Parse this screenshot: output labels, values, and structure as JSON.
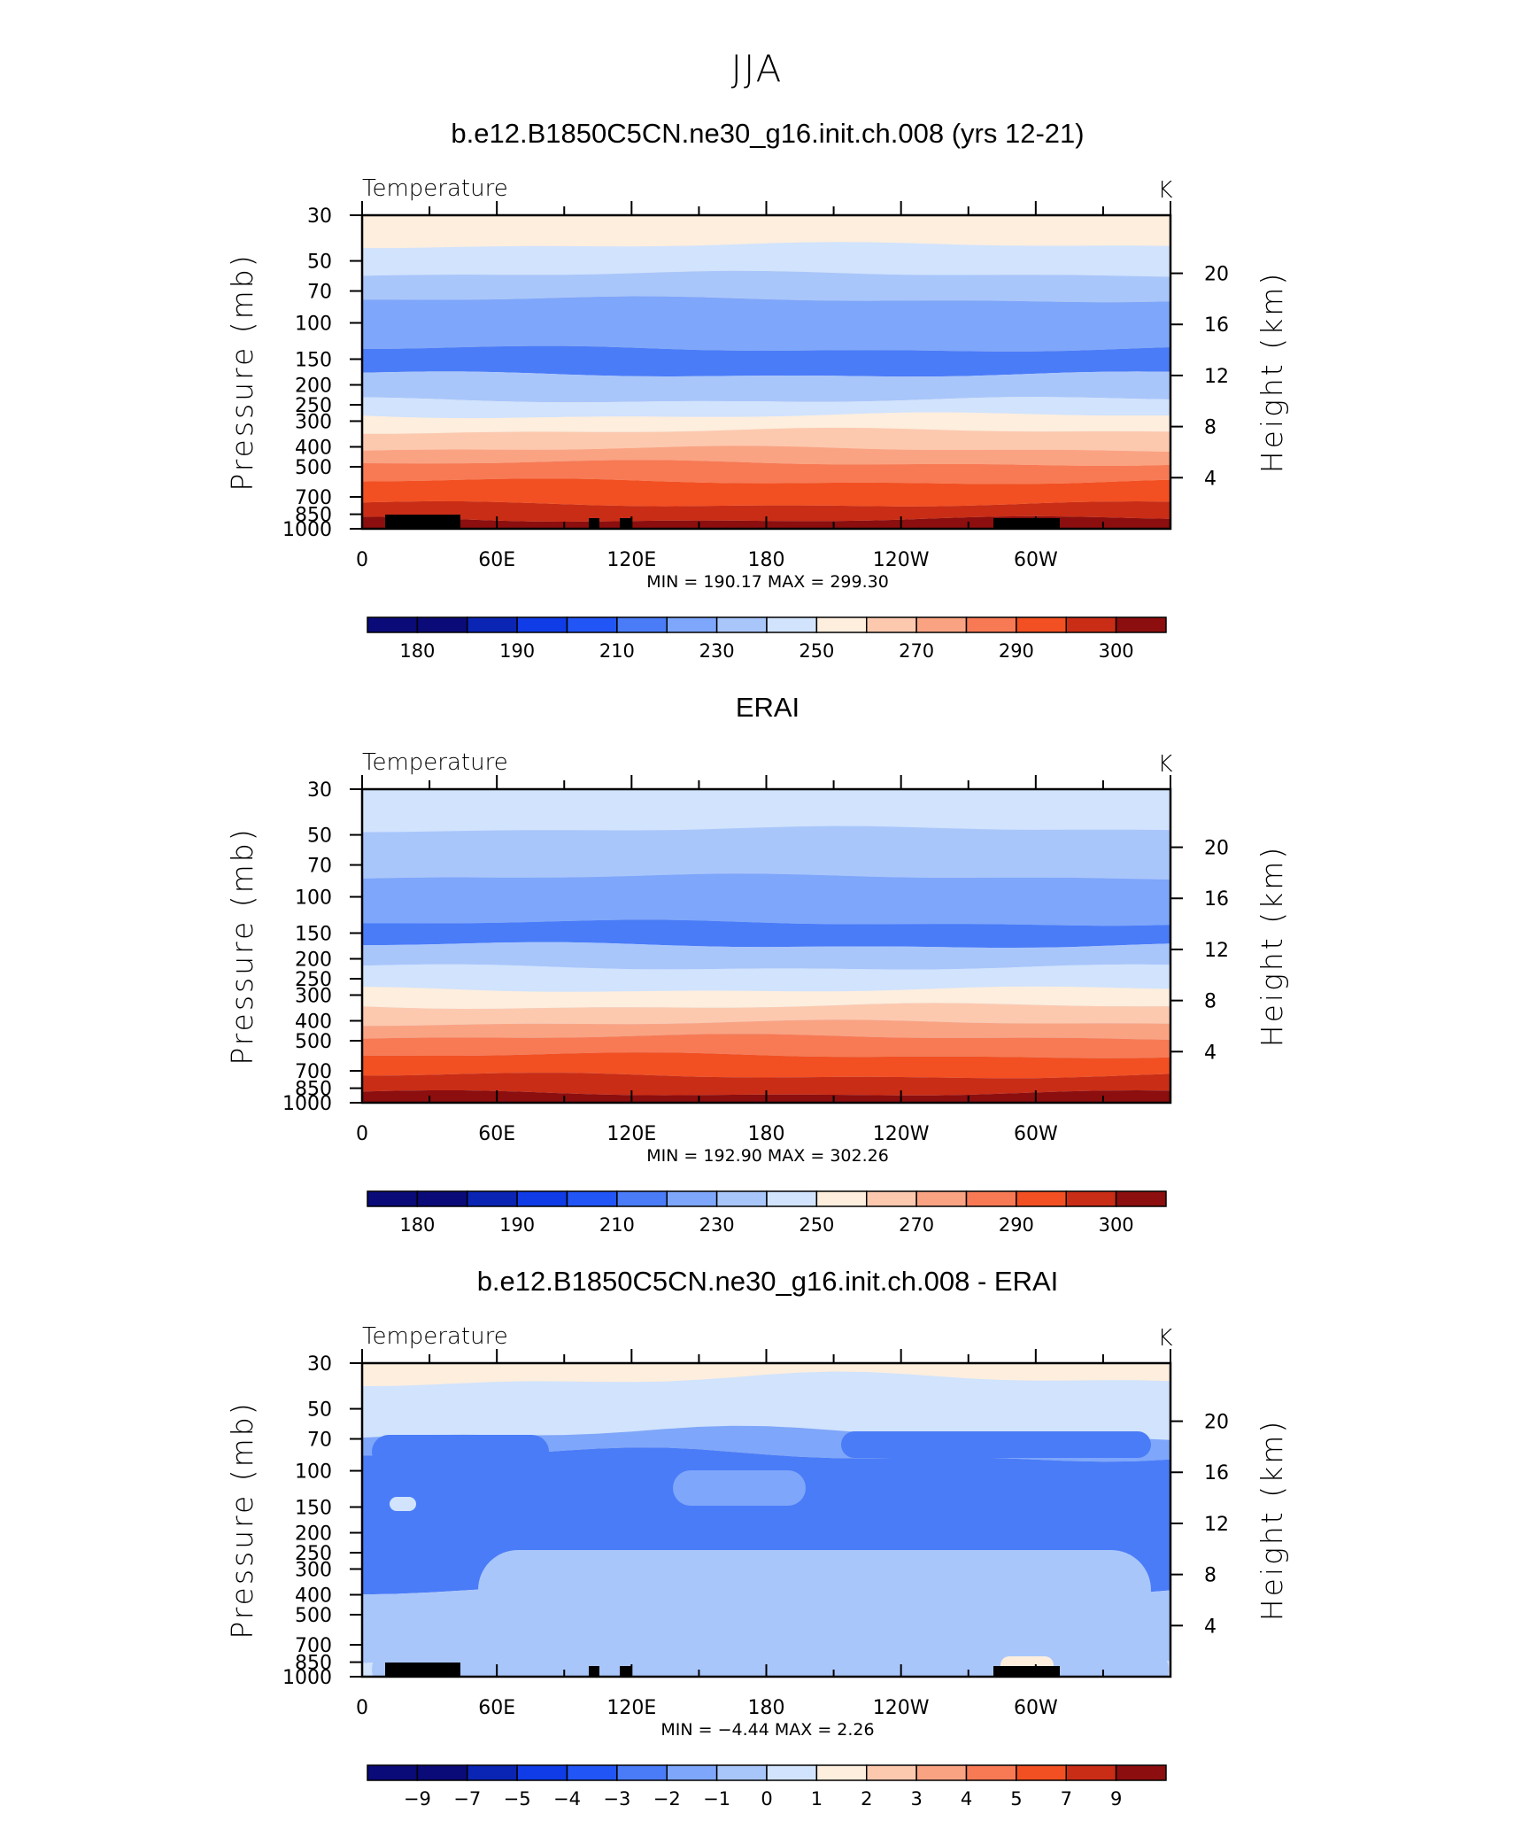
{
  "title": "JJA",
  "chart_data": [
    {
      "type": "heatmap",
      "title": "b.e12.B1850C5CN.ne30_g16.init.ch.008 (yrs 12-21)",
      "variable": "Temperature",
      "units": "K",
      "ylabel": "Pressure  (mb)",
      "ylabel_right": "Height  (km)",
      "x_ticks": [
        "0",
        "60E",
        "120E",
        "180",
        "120W",
        "60W"
      ],
      "y_ticks": [
        "30",
        "50",
        "70",
        "100",
        "150",
        "200",
        "250",
        "300",
        "400",
        "500",
        "700",
        "850",
        "1000"
      ],
      "y_right_ticks": [
        "20",
        "16",
        "12",
        "8",
        "4"
      ],
      "stats": "MIN =  190.17   MAX =  299.30",
      "colorbar_labels": [
        "180",
        "190",
        "210",
        "230",
        "250",
        "270",
        "290",
        "300"
      ],
      "colors": [
        "#0a0a78",
        "#0a24b4",
        "#0f3ce6",
        "#2255f5",
        "#4a7cf8",
        "#7ea6fa",
        "#a9c6fb",
        "#d1e3fd",
        "#fdeede",
        "#fcc9af",
        "#faa383",
        "#f77a55",
        "#f25022",
        "#c92d16",
        "#8c0e0e"
      ],
      "levels_y": [
        [
          30,
          8
        ],
        [
          42,
          7
        ],
        [
          58,
          6
        ],
        [
          77,
          5
        ],
        [
          134,
          4
        ],
        [
          178,
          6
        ],
        [
          237,
          7
        ],
        [
          282,
          8
        ],
        [
          335,
          9
        ],
        [
          410,
          10
        ],
        [
          480,
          11
        ],
        [
          590,
          12
        ],
        [
          760,
          13
        ],
        [
          900,
          14
        ]
      ]
    },
    {
      "type": "heatmap",
      "title": "ERAI",
      "variable": "Temperature",
      "units": "K",
      "ylabel": "Pressure  (mb)",
      "ylabel_right": "Height  (km)",
      "x_ticks": [
        "0",
        "60E",
        "120E",
        "180",
        "120W",
        "60W"
      ],
      "y_ticks": [
        "30",
        "50",
        "70",
        "100",
        "150",
        "200",
        "250",
        "300",
        "400",
        "500",
        "700",
        "850",
        "1000"
      ],
      "y_right_ticks": [
        "20",
        "16",
        "12",
        "8",
        "4"
      ],
      "stats": "MIN =  192.90   MAX =  302.26",
      "colorbar_labels": [
        "180",
        "190",
        "210",
        "230",
        "250",
        "270",
        "290",
        "300"
      ],
      "levels_y": [
        [
          30,
          7
        ],
        [
          47,
          6
        ],
        [
          80,
          5
        ],
        [
          134,
          4
        ],
        [
          172,
          6
        ],
        [
          220,
          7
        ],
        [
          282,
          8
        ],
        [
          340,
          9
        ],
        [
          410,
          10
        ],
        [
          480,
          11
        ],
        [
          590,
          12
        ],
        [
          740,
          13
        ],
        [
          900,
          14
        ]
      ]
    },
    {
      "type": "heatmap",
      "title": "b.e12.B1850C5CN.ne30_g16.init.ch.008 - ERAI",
      "variable": "Temperature",
      "units": "K",
      "ylabel": "Pressure  (mb)",
      "ylabel_right": "Height  (km)",
      "x_ticks": [
        "0",
        "60E",
        "120E",
        "180",
        "120W",
        "60W"
      ],
      "y_ticks": [
        "30",
        "50",
        "70",
        "100",
        "150",
        "200",
        "250",
        "300",
        "400",
        "500",
        "700",
        "850",
        "1000"
      ],
      "y_right_ticks": [
        "20",
        "16",
        "12",
        "8",
        "4"
      ],
      "stats": "MIN =    −4.44   MAX =     2.26",
      "colorbar_labels": [
        "−9",
        "−7",
        "−5",
        "−4",
        "−3",
        "−2",
        "−1",
        "0",
        "1",
        "2",
        "3",
        "4",
        "5",
        "7",
        "9"
      ],
      "levels_y": [
        [
          30,
          8
        ],
        [
          36,
          7
        ],
        [
          66,
          5
        ],
        [
          84,
          4
        ],
        [
          400,
          6
        ],
        [
          900,
          7
        ]
      ]
    }
  ]
}
